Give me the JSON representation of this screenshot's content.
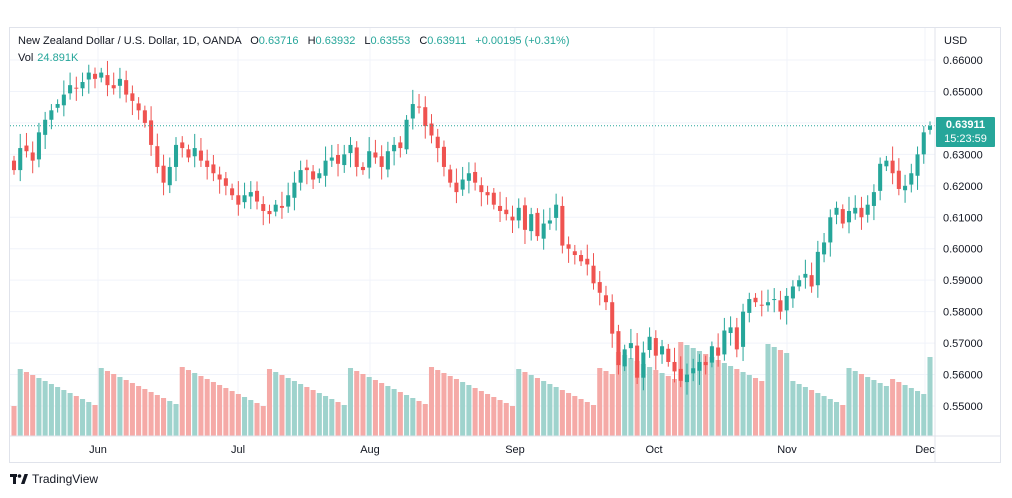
{
  "legend": {
    "symbol": "New Zealand Dollar / U.S. Dollar, 1D, OANDA",
    "open_key": "O",
    "open": "0.63716",
    "high_key": "H",
    "high": "0.63932",
    "low_key": "L",
    "low": "0.63553",
    "close_key": "C",
    "close": "0.63911",
    "change": "+0.00195 (+0.31%)",
    "vol_label": "Vol",
    "vol_value": "24.891K"
  },
  "price_tag": {
    "price": "0.63911",
    "countdown": "15:23:59"
  },
  "branding": {
    "name": "TradingView"
  },
  "colors": {
    "up": "#26a69a",
    "down": "#ef5350",
    "up_vol": "#9fd3cd",
    "down_vol": "#f5aaa7",
    "grid": "#f0f3fa"
  },
  "chart_data": {
    "type": "candlestick",
    "currency": "USD",
    "y_ticks": [
      "0.66000",
      "0.65000",
      "0.64000",
      "0.63000",
      "0.62000",
      "0.61000",
      "0.60000",
      "0.59000",
      "0.58000",
      "0.57000",
      "0.56000",
      "0.55000"
    ],
    "ylim": [
      0.5415,
      0.6655
    ],
    "x_ticks": [
      "Jun",
      "Jul",
      "Aug",
      "Sep",
      "Oct",
      "Nov",
      "Dec"
    ],
    "last_price": 0.63911,
    "closes": [
      0.625,
      0.632,
      0.631,
      0.628,
      0.637,
      0.641,
      0.644,
      0.646,
      0.649,
      0.652,
      0.651,
      0.653,
      0.656,
      0.654,
      0.656,
      0.652,
      0.651,
      0.654,
      0.649,
      0.647,
      0.644,
      0.64,
      0.633,
      0.626,
      0.621,
      0.626,
      0.633,
      0.632,
      0.629,
      0.632,
      0.628,
      0.626,
      0.624,
      0.622,
      0.62,
      0.617,
      0.614,
      0.617,
      0.618,
      0.615,
      0.612,
      0.611,
      0.614,
      0.613,
      0.617,
      0.621,
      0.625,
      0.625,
      0.622,
      0.624,
      0.628,
      0.629,
      0.627,
      0.63,
      0.633,
      0.626,
      0.625,
      0.631,
      0.629,
      0.626,
      0.631,
      0.633,
      0.632,
      0.641,
      0.646,
      0.645,
      0.639,
      0.636,
      0.632,
      0.626,
      0.621,
      0.618,
      0.622,
      0.624,
      0.621,
      0.618,
      0.617,
      0.614,
      0.612,
      0.611,
      0.609,
      0.613,
      0.606,
      0.611,
      0.604,
      0.608,
      0.609,
      0.614,
      0.601,
      0.6,
      0.598,
      0.596,
      0.595,
      0.589,
      0.586,
      0.583,
      0.573,
      0.563,
      0.568,
      0.57,
      0.559,
      0.567,
      0.572,
      0.566,
      0.569,
      0.564,
      0.561,
      0.558,
      0.56,
      0.562,
      0.564,
      0.563,
      0.569,
      0.566,
      0.574,
      0.575,
      0.568,
      0.58,
      0.584,
      0.583,
      0.582,
      0.583,
      0.584,
      0.58,
      0.585,
      0.588,
      0.59,
      0.592,
      0.588,
      0.599,
      0.602,
      0.61,
      0.613,
      0.608,
      0.612,
      0.613,
      0.61,
      0.614,
      0.618,
      0.627,
      0.628,
      0.624,
      0.619,
      0.62,
      0.624,
      0.63,
      0.637,
      0.639
    ]
  }
}
